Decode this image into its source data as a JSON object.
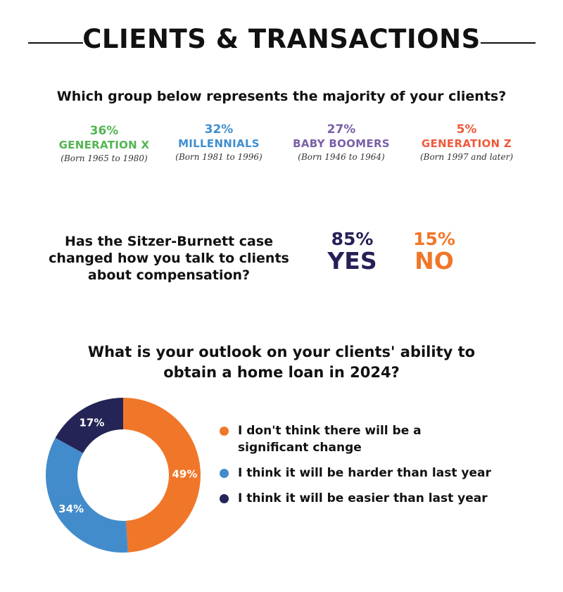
{
  "header": {
    "title": "CLIENTS & TRANSACTIONS"
  },
  "generations": {
    "question": "Which group below represents the majority of your clients?",
    "items": [
      {
        "pct": "36%",
        "name": "GENERATION X",
        "born": "(Born 1965 to 1980)",
        "color": "#52b552"
      },
      {
        "pct": "32%",
        "name": "MILLENNIALS",
        "born": "(Born 1981 to 1996)",
        "color": "#3f8ed1"
      },
      {
        "pct": "27%",
        "name": "BABY BOOMERS",
        "born": "(Born 1946 to 1964)",
        "color": "#7a5fa8"
      },
      {
        "pct": "5%",
        "name": "GENERATION Z",
        "born": "(Born 1997 and later)",
        "color": "#ef5a3c"
      }
    ]
  },
  "sitzer": {
    "question_lines": [
      "Has the Sitzer-Burnett case",
      "changed how you talk to clients",
      "about compensation?"
    ],
    "yes": {
      "pct": "85%",
      "label": "YES",
      "color": "#252157"
    },
    "no": {
      "pct": "15%",
      "label": "NO",
      "color": "#f0772a"
    }
  },
  "outlook": {
    "question_lines": [
      "What is your outlook on your clients' ability to",
      "obtain a home loan in 2024?"
    ]
  },
  "chart_data": {
    "type": "pie",
    "title": "",
    "series": [
      {
        "name": "I don't think there will be a significant change",
        "value": 49,
        "label": "49%",
        "color": "#f0772a"
      },
      {
        "name": "I think it will be harder than last year",
        "value": 34,
        "label": "34%",
        "color": "#438ccb"
      },
      {
        "name": "I think it will be easier than last year",
        "value": 17,
        "label": "17%",
        "color": "#242456"
      }
    ],
    "legend_lines": [
      [
        "I don't think there will be a",
        "significant change"
      ],
      [
        "I think it will be harder than last year"
      ],
      [
        "I think it will be easier than last year"
      ]
    ],
    "legend_position": "right",
    "donut": true
  }
}
